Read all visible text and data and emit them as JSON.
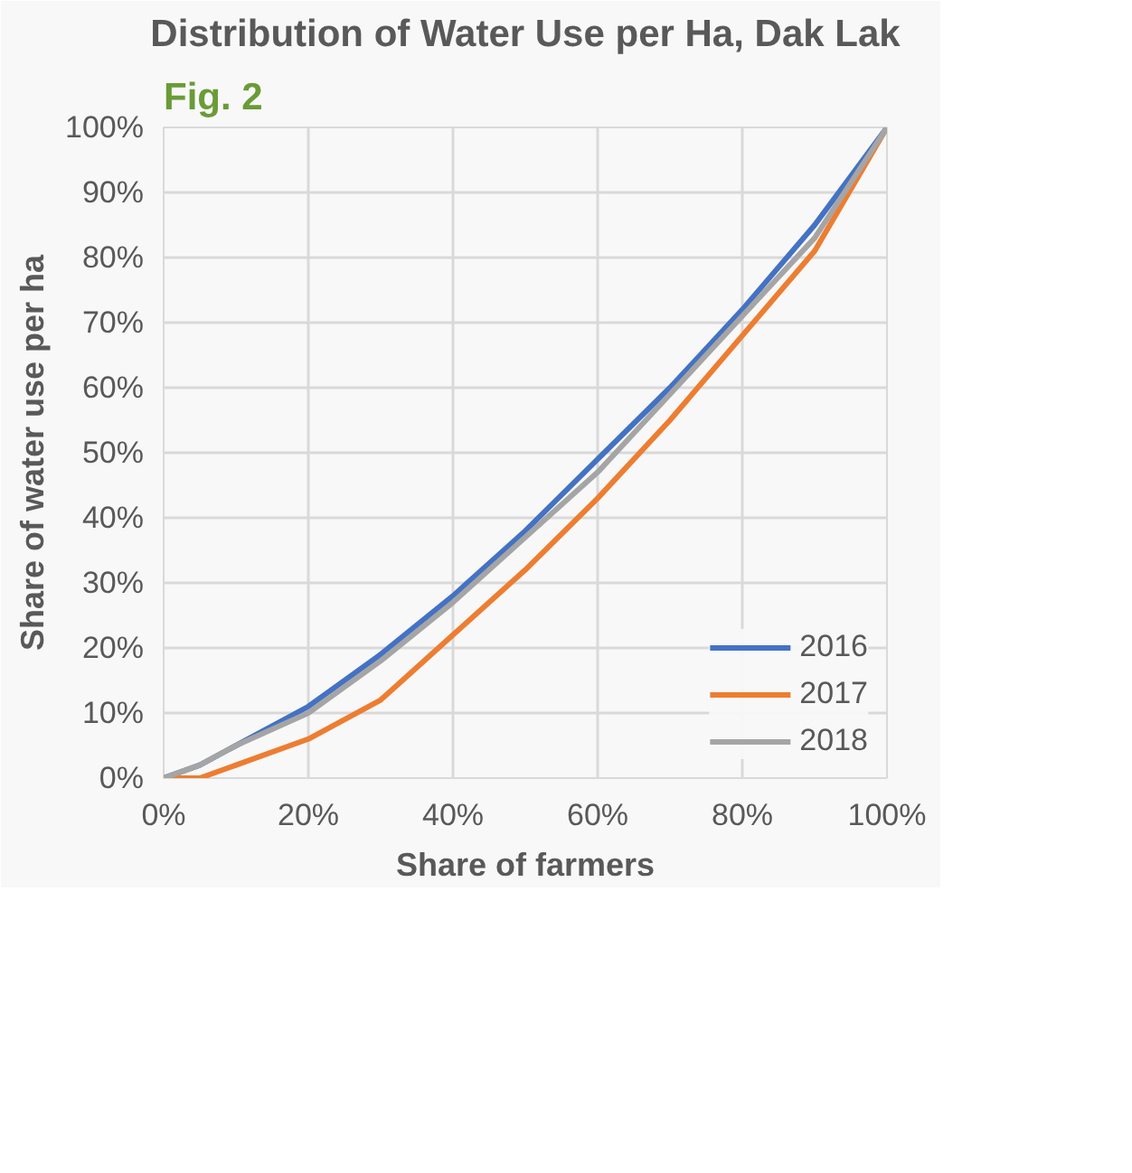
{
  "chart_data": {
    "type": "line",
    "title": "Distribution of Water Use per Ha, Dak Lak",
    "xlabel": "Share of farmers",
    "ylabel": "Share of water use per ha",
    "annotations": [
      "Fig. 2"
    ],
    "x": [
      0,
      5,
      10,
      20,
      30,
      40,
      50,
      60,
      70,
      80,
      90,
      100
    ],
    "series": [
      {
        "name": "2016",
        "color": "#4472c4",
        "values": [
          0,
          2,
          5,
          11,
          19,
          28,
          38,
          49,
          60,
          72,
          85,
          100
        ]
      },
      {
        "name": "2017",
        "color": "#ed7d31",
        "values": [
          0,
          0,
          2,
          6,
          12,
          22,
          32,
          43,
          55,
          68,
          81,
          100
        ]
      },
      {
        "name": "2018",
        "color": "#a5a5a5",
        "values": [
          0,
          2,
          5,
          10,
          18,
          27,
          37,
          47,
          59,
          71,
          83,
          100
        ]
      }
    ],
    "xlim": [
      0,
      100
    ],
    "ylim": [
      0,
      100
    ],
    "xticks": [
      {
        "value": 0,
        "label": "0%"
      },
      {
        "value": 20,
        "label": "20%"
      },
      {
        "value": 40,
        "label": "40%"
      },
      {
        "value": 60,
        "label": "60%"
      },
      {
        "value": 80,
        "label": "80%"
      },
      {
        "value": 100,
        "label": "100%"
      }
    ],
    "yticks": [
      {
        "value": 0,
        "label": "0%"
      },
      {
        "value": 10,
        "label": "10%"
      },
      {
        "value": 20,
        "label": "20%"
      },
      {
        "value": 30,
        "label": "30%"
      },
      {
        "value": 40,
        "label": "40%"
      },
      {
        "value": 50,
        "label": "50%"
      },
      {
        "value": 60,
        "label": "60%"
      },
      {
        "value": 70,
        "label": "70%"
      },
      {
        "value": 80,
        "label": "80%"
      },
      {
        "value": 90,
        "label": "90%"
      },
      {
        "value": 100,
        "label": "100%"
      }
    ],
    "grid": true,
    "legend": "bottom right",
    "marker": "none",
    "line_style": "solid"
  }
}
